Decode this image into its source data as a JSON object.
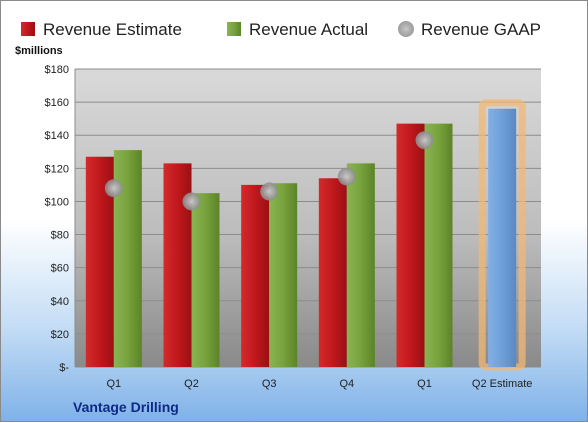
{
  "company": "Vantage Drilling",
  "chart_data": {
    "type": "bar",
    "ylabel": "$millions",
    "ylim": [
      0,
      180
    ],
    "y_ticks": [
      {
        "value": 0,
        "label": "$-"
      },
      {
        "value": 20,
        "label": "$20"
      },
      {
        "value": 40,
        "label": "$40"
      },
      {
        "value": 60,
        "label": "$60"
      },
      {
        "value": 80,
        "label": "$80"
      },
      {
        "value": 100,
        "label": "$100"
      },
      {
        "value": 120,
        "label": "$120"
      },
      {
        "value": 140,
        "label": "$140"
      },
      {
        "value": 160,
        "label": "$160"
      },
      {
        "value": 180,
        "label": "$180"
      }
    ],
    "categories": [
      "Q1",
      "Q2",
      "Q3",
      "Q4",
      "Q1",
      "Q2 Estimate"
    ],
    "series": [
      {
        "name": "Revenue Estimate",
        "color": "#c0181c",
        "type": "bar",
        "values": [
          127,
          123,
          110,
          114,
          147,
          null
        ]
      },
      {
        "name": "Revenue Actual",
        "color": "#77a23c",
        "type": "bar",
        "values": [
          131,
          105,
          111,
          123,
          147,
          null
        ]
      },
      {
        "name": "Revenue GAAP",
        "color": "#a9a9a9",
        "type": "marker",
        "values": [
          108,
          100,
          106,
          115,
          137,
          null
        ]
      }
    ],
    "forecast": {
      "category": "Q2 Estimate",
      "value": 156,
      "color": "#6e9fd8",
      "highlight": "#f3b874"
    },
    "grid": true,
    "legend": "top"
  }
}
